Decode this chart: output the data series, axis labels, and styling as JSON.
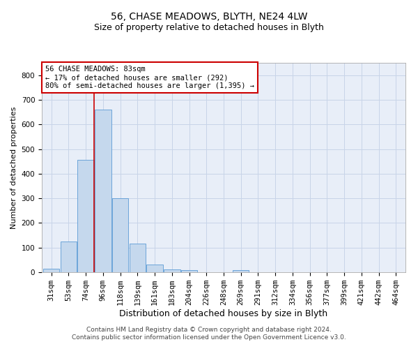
{
  "title": "56, CHASE MEADOWS, BLYTH, NE24 4LW",
  "subtitle": "Size of property relative to detached houses in Blyth",
  "xlabel": "Distribution of detached houses by size in Blyth",
  "ylabel": "Number of detached properties",
  "footer_line1": "Contains HM Land Registry data © Crown copyright and database right 2024.",
  "footer_line2": "Contains public sector information licensed under the Open Government Licence v3.0.",
  "bin_labels": [
    "31sqm",
    "53sqm",
    "74sqm",
    "96sqm",
    "118sqm",
    "139sqm",
    "161sqm",
    "183sqm",
    "204sqm",
    "226sqm",
    "248sqm",
    "269sqm",
    "291sqm",
    "312sqm",
    "334sqm",
    "356sqm",
    "377sqm",
    "399sqm",
    "421sqm",
    "442sqm",
    "464sqm"
  ],
  "bar_values": [
    15,
    125,
    455,
    660,
    300,
    115,
    30,
    10,
    8,
    0,
    0,
    8,
    0,
    0,
    0,
    0,
    0,
    0,
    0,
    0,
    0
  ],
  "bar_color": "#c5d8ed",
  "bar_edge_color": "#5b9bd5",
  "red_line_x": 2.5,
  "annotation_text": "56 CHASE MEADOWS: 83sqm\n← 17% of detached houses are smaller (292)\n80% of semi-detached houses are larger (1,395) →",
  "annotation_box_color": "#ffffff",
  "annotation_border_color": "#cc0000",
  "ylim": [
    0,
    850
  ],
  "yticks": [
    0,
    100,
    200,
    300,
    400,
    500,
    600,
    700,
    800
  ],
  "title_fontsize": 10,
  "subtitle_fontsize": 9,
  "xlabel_fontsize": 9,
  "ylabel_fontsize": 8,
  "tick_fontsize": 7.5,
  "annotation_fontsize": 7.5,
  "footer_fontsize": 6.5,
  "background_color": "#ffffff",
  "grid_color": "#c8d4e8",
  "ax_bg_color": "#e8eef8"
}
